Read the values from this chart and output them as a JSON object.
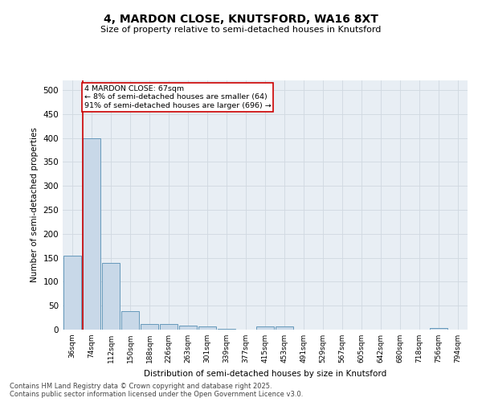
{
  "title1": "4, MARDON CLOSE, KNUTSFORD, WA16 8XT",
  "title2": "Size of property relative to semi-detached houses in Knutsford",
  "xlabel": "Distribution of semi-detached houses by size in Knutsford",
  "ylabel": "Number of semi-detached properties",
  "categories": [
    "36sqm",
    "74sqm",
    "112sqm",
    "150sqm",
    "188sqm",
    "226sqm",
    "263sqm",
    "301sqm",
    "339sqm",
    "377sqm",
    "415sqm",
    "453sqm",
    "491sqm",
    "529sqm",
    "567sqm",
    "605sqm",
    "642sqm",
    "680sqm",
    "718sqm",
    "756sqm",
    "794sqm"
  ],
  "values": [
    155,
    400,
    140,
    38,
    11,
    11,
    8,
    7,
    2,
    0,
    6,
    7,
    0,
    0,
    0,
    0,
    0,
    0,
    0,
    3,
    0
  ],
  "bar_color": "#c8d8e8",
  "bar_edge_color": "#6699bb",
  "grid_color": "#d0d8e0",
  "background_color": "#ffffff",
  "axes_background": "#e8eef4",
  "annotation_line1": "4 MARDON CLOSE: 67sqm",
  "annotation_line2": "← 8% of semi-detached houses are smaller (64)",
  "annotation_line3": "91% of semi-detached houses are larger (696) →",
  "annotation_box_color": "#ffffff",
  "annotation_box_edge": "#cc0000",
  "vline_color": "#cc0000",
  "ylim_max": 520,
  "yticks": [
    0,
    50,
    100,
    150,
    200,
    250,
    300,
    350,
    400,
    450,
    500
  ],
  "footer1": "Contains HM Land Registry data © Crown copyright and database right 2025.",
  "footer2": "Contains public sector information licensed under the Open Government Licence v3.0."
}
